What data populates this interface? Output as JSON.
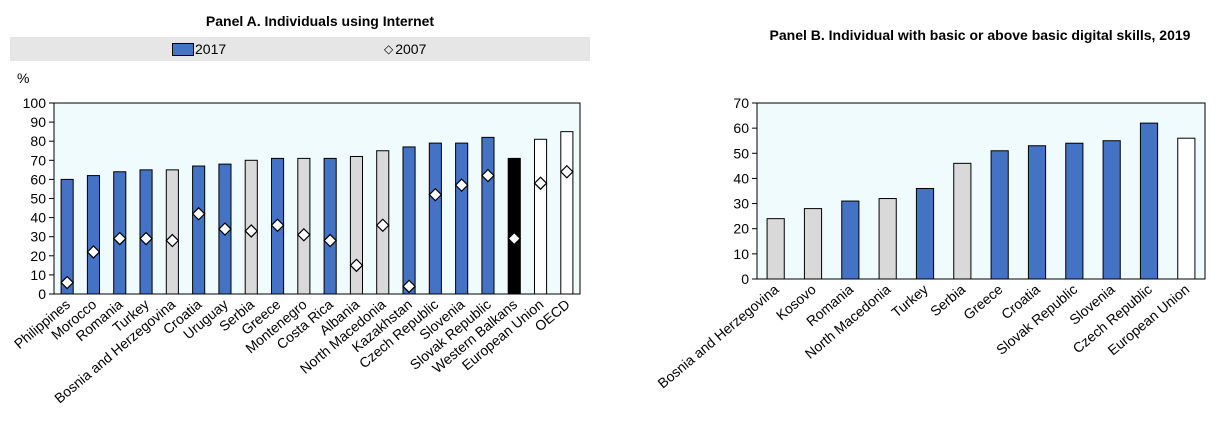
{
  "chart_data": [
    {
      "type": "bar",
      "title": "Panel A. Individuals using Internet",
      "ylabel": "%",
      "ylim": [
        0,
        100
      ],
      "yticks": [
        0,
        10,
        20,
        30,
        40,
        50,
        60,
        70,
        80,
        90,
        100
      ],
      "grid": false,
      "legend_position": "top",
      "categories": [
        "Philippines",
        "Morocco",
        "Romania",
        "Turkey",
        "Bosnia and Herzegovina",
        "Croatia",
        "Uruguay",
        "Serbia",
        "Greece",
        "Montenegro",
        "Costa Rica",
        "Albania",
        "North Macedonia",
        "Kazakhstan",
        "Czech Republic",
        "Slovenia",
        "Slovak Republic",
        "Western Balkans",
        "European Union",
        "OECD"
      ],
      "series": [
        {
          "name": "2017",
          "mark": "bar",
          "values": [
            60,
            62,
            64,
            65,
            65,
            67,
            68,
            70,
            71,
            71,
            71,
            72,
            75,
            77,
            79,
            79,
            82,
            71,
            81,
            85
          ]
        },
        {
          "name": "2007",
          "mark": "diamond",
          "values": [
            6,
            22,
            29,
            29,
            28,
            42,
            34,
            33,
            36,
            31,
            28,
            15,
            36,
            4,
            52,
            57,
            62,
            29,
            58,
            64
          ]
        }
      ],
      "bar_fills": [
        "#4472c4",
        "#4472c4",
        "#4472c4",
        "#4472c4",
        "#d9d9d9",
        "#4472c4",
        "#4472c4",
        "#d9d9d9",
        "#4472c4",
        "#d9d9d9",
        "#4472c4",
        "#d9d9d9",
        "#d9d9d9",
        "#4472c4",
        "#4472c4",
        "#4472c4",
        "#4472c4",
        "#000000",
        "#ffffff",
        "#ffffff"
      ]
    },
    {
      "type": "bar",
      "title": "Panel B. Individual with basic or above basic digital skills, 2019",
      "ylim": [
        0,
        70
      ],
      "yticks": [
        0,
        10,
        20,
        30,
        40,
        50,
        60,
        70
      ],
      "grid": false,
      "categories": [
        "Bosnia and Herzegovina",
        "Kosovo",
        "Romania",
        "North Macedonia",
        "Turkey",
        "Serbia",
        "Greece",
        "Croatia",
        "Slovak Republic",
        "Slovenia",
        "Czech Republic",
        "European Union"
      ],
      "values": [
        24,
        28,
        31,
        32,
        36,
        46,
        51,
        53,
        54,
        55,
        62,
        56
      ],
      "bar_fills": [
        "#d9d9d9",
        "#d9d9d9",
        "#4472c4",
        "#d9d9d9",
        "#4472c4",
        "#d9d9d9",
        "#4472c4",
        "#4472c4",
        "#4472c4",
        "#4472c4",
        "#4472c4",
        "#ffffff"
      ]
    }
  ],
  "colors": {
    "bar_blue": "#4472c4",
    "bar_grey": "#d9d9d9",
    "bar_highlight": "#000000",
    "bar_outline": "#000000",
    "plot_background": "#f0fbfd",
    "legend_background": "#e6e6e6"
  },
  "legend": {
    "label_2017": "2017",
    "label_2007": "2007",
    "diamond_glyph": "◇"
  }
}
